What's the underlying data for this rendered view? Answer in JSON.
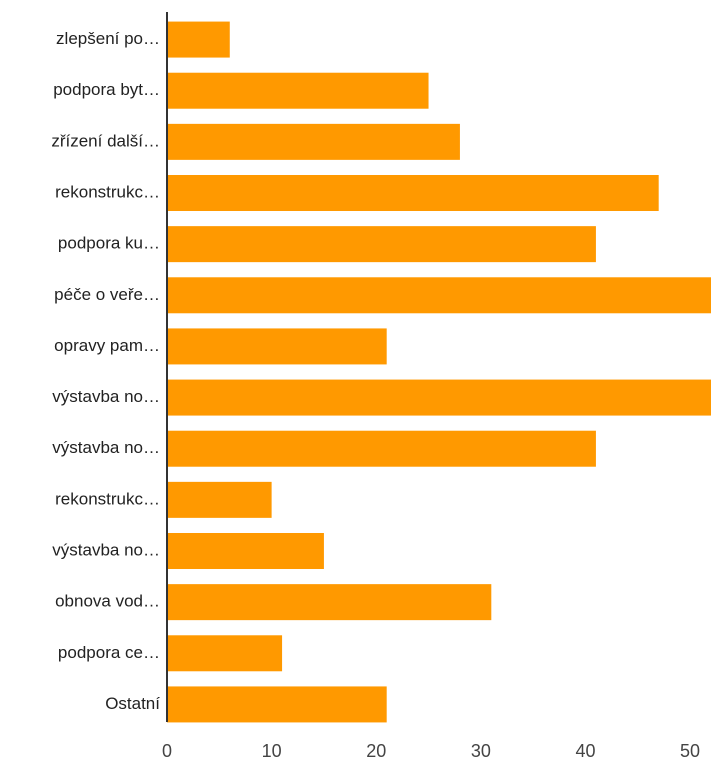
{
  "chart_data": {
    "type": "barh",
    "categories": [
      "zlepšení po…",
      "podpora byt…",
      "zřízení další…",
      "rekonstrukc…",
      "podpora ku…",
      "péče o veře…",
      "opravy pam…",
      "výstavba no…",
      "výstavba no…",
      "rekonstrukc…",
      "výstavba no…",
      "obnova vod…",
      "podpora ce…",
      "Ostatní"
    ],
    "values": [
      6,
      25,
      28,
      47,
      41,
      52,
      21,
      52,
      41,
      10,
      15,
      31,
      11,
      21
    ],
    "color": "#ff9900",
    "xlim": [
      0,
      52
    ],
    "xticks": [
      0,
      10,
      20,
      30,
      40,
      50
    ],
    "grid": false
  }
}
